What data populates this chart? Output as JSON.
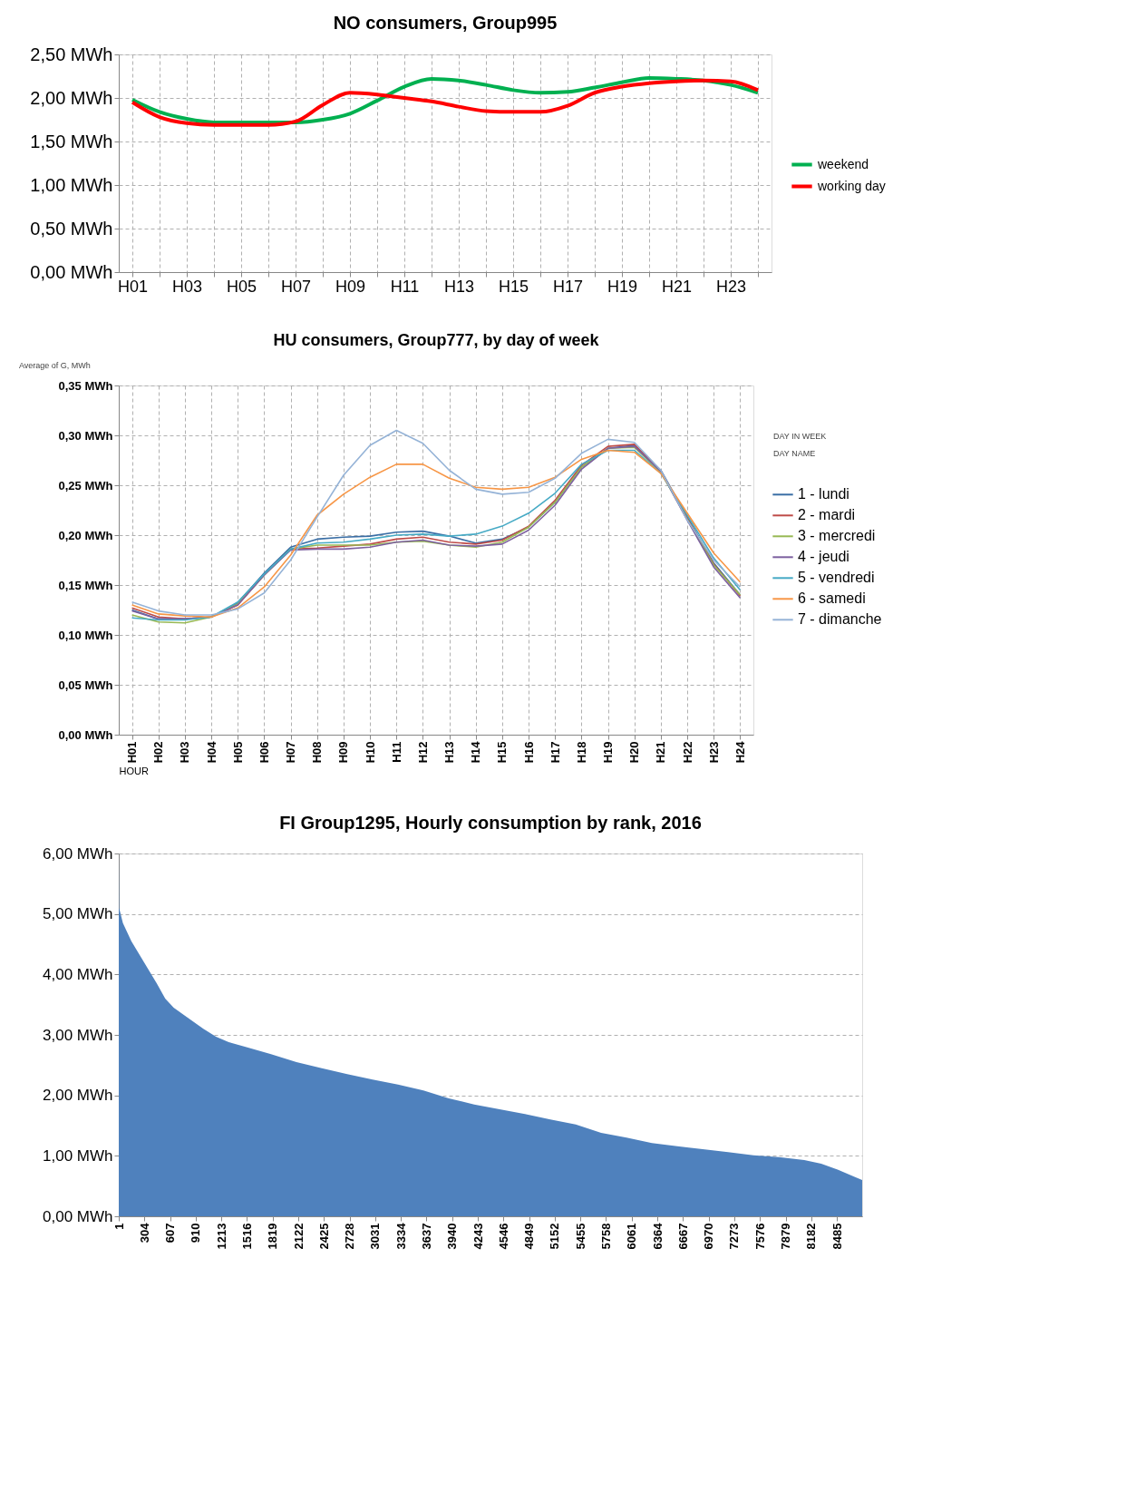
{
  "chart_data": [
    {
      "type": "line",
      "title": "NO consumers, Group995",
      "categories": [
        "H01",
        null,
        "H03",
        null,
        "H05",
        null,
        "H07",
        null,
        "H09",
        null,
        "H11",
        null,
        "H13",
        null,
        "H15",
        null,
        "H17",
        null,
        "H19",
        null,
        "H21",
        null,
        "H23",
        null
      ],
      "series": [
        {
          "name": "weekend",
          "color": "#00b050",
          "values": [
            1.98,
            1.84,
            1.76,
            1.72,
            1.72,
            1.72,
            1.72,
            1.75,
            1.82,
            1.97,
            2.13,
            2.22,
            2.2,
            2.15,
            2.09,
            2.06,
            2.07,
            2.12,
            2.18,
            2.23,
            2.22,
            2.2,
            2.15,
            2.06
          ]
        },
        {
          "name": "working day",
          "color": "#ff0000",
          "values": [
            1.95,
            1.78,
            1.71,
            1.69,
            1.69,
            1.69,
            1.73,
            1.92,
            2.06,
            2.04,
            2.0,
            1.96,
            1.9,
            1.85,
            1.84,
            1.84,
            1.91,
            2.06,
            2.13,
            2.17,
            2.19,
            2.2,
            2.19,
            2.09
          ]
        }
      ],
      "ylim": [
        0,
        2.5
      ],
      "yticks": [
        {
          "value": 0,
          "label": "0,00 MWh"
        },
        {
          "value": 0.5,
          "label": "0,50 MWh"
        },
        {
          "value": 1,
          "label": "1,00 MWh"
        },
        {
          "value": 1.5,
          "label": "1,50 MWh"
        },
        {
          "value": 2,
          "label": "2,00 MWh"
        },
        {
          "value": 2.5,
          "label": "2,50 MWh"
        }
      ],
      "grid": true,
      "legend": "right"
    },
    {
      "type": "line",
      "title": "HU consumers, Group777, by day of week",
      "xlabel": "HOUR",
      "annotations": [
        "Average of G, MWh",
        "DAY IN WEEK",
        "DAY NAME"
      ],
      "categories": [
        "H01",
        "H02",
        "H03",
        "H04",
        "H05",
        "H06",
        "H07",
        "H08",
        "H09",
        "H10",
        "H11",
        "H12",
        "H13",
        "H14",
        "H15",
        "H16",
        "H17",
        "H18",
        "H19",
        "H20",
        "H21",
        "H22",
        "H23",
        "H24"
      ],
      "series": [
        {
          "name": "1 - lundi",
          "color": "#3a6ea5",
          "values": [
            0.125,
            0.116,
            0.116,
            0.118,
            0.132,
            0.162,
            0.188,
            0.196,
            0.198,
            0.199,
            0.203,
            0.204,
            0.199,
            0.192,
            0.196,
            0.208,
            0.233,
            0.268,
            0.287,
            0.29,
            0.265,
            0.218,
            0.172,
            0.14
          ]
        },
        {
          "name": "2 - mardi",
          "color": "#be4b48",
          "values": [
            0.127,
            0.118,
            0.116,
            0.118,
            0.13,
            0.16,
            0.186,
            0.187,
            0.189,
            0.191,
            0.196,
            0.198,
            0.193,
            0.191,
            0.195,
            0.209,
            0.235,
            0.27,
            0.289,
            0.291,
            0.264,
            0.217,
            0.171,
            0.139
          ]
        },
        {
          "name": "3 - mercredi",
          "color": "#98b954",
          "values": [
            0.12,
            0.113,
            0.112,
            0.118,
            0.131,
            0.16,
            0.186,
            0.19,
            0.19,
            0.19,
            0.193,
            0.194,
            0.19,
            0.188,
            0.193,
            0.208,
            0.233,
            0.268,
            0.287,
            0.288,
            0.263,
            0.216,
            0.17,
            0.14
          ]
        },
        {
          "name": "4 - jeudi",
          "color": "#7d60a0",
          "values": [
            0.124,
            0.116,
            0.116,
            0.118,
            0.13,
            0.16,
            0.185,
            0.186,
            0.186,
            0.188,
            0.193,
            0.195,
            0.19,
            0.189,
            0.191,
            0.205,
            0.23,
            0.266,
            0.287,
            0.289,
            0.264,
            0.215,
            0.168,
            0.137
          ]
        },
        {
          "name": "5 - vendredi",
          "color": "#46aac5",
          "values": [
            0.117,
            0.115,
            0.115,
            0.118,
            0.133,
            0.161,
            0.186,
            0.192,
            0.193,
            0.196,
            0.2,
            0.201,
            0.199,
            0.201,
            0.209,
            0.222,
            0.242,
            0.271,
            0.285,
            0.285,
            0.262,
            0.22,
            0.177,
            0.145
          ]
        },
        {
          "name": "6 - samedi",
          "color": "#f79646",
          "values": [
            0.13,
            0.121,
            0.119,
            0.118,
            0.127,
            0.148,
            0.18,
            0.22,
            0.241,
            0.258,
            0.271,
            0.271,
            0.257,
            0.248,
            0.246,
            0.248,
            0.258,
            0.276,
            0.285,
            0.283,
            0.262,
            0.222,
            0.182,
            0.153
          ]
        },
        {
          "name": "7 - dimanche",
          "color": "#95b3d7",
          "values": [
            0.133,
            0.124,
            0.12,
            0.12,
            0.126,
            0.142,
            0.175,
            0.218,
            0.26,
            0.29,
            0.305,
            0.292,
            0.265,
            0.246,
            0.241,
            0.243,
            0.257,
            0.282,
            0.296,
            0.293,
            0.265,
            0.215,
            0.175,
            0.148
          ]
        }
      ],
      "ylim": [
        0,
        0.35
      ],
      "yticks": [
        {
          "value": 0,
          "label": "0,00 MWh"
        },
        {
          "value": 0.05,
          "label": "0,05 MWh"
        },
        {
          "value": 0.1,
          "label": "0,10 MWh"
        },
        {
          "value": 0.15,
          "label": "0,15 MWh"
        },
        {
          "value": 0.2,
          "label": "0,20 MWh"
        },
        {
          "value": 0.25,
          "label": "0,25 MWh"
        },
        {
          "value": 0.3,
          "label": "0,30 MWh"
        },
        {
          "value": 0.35,
          "label": "0,35 MWh"
        }
      ],
      "grid": true,
      "legend": "right"
    },
    {
      "type": "area",
      "title": "FI Group1295, Hourly consumption by rank, 2016",
      "series": [
        {
          "color": "#4f81bd",
          "x": [
            1,
            5,
            50,
            150,
            300,
            450,
            550,
            650,
            800,
            1000,
            1150,
            1300,
            1500,
            1800,
            2100,
            2400,
            2700,
            3000,
            3300,
            3600,
            3900,
            4200,
            4500,
            4800,
            5100,
            5400,
            5700,
            6000,
            6300,
            6600,
            6900,
            7200,
            7500,
            7800,
            8100,
            8300,
            8500,
            8700,
            8784
          ],
          "values": [
            5.95,
            5.1,
            4.85,
            4.55,
            4.2,
            3.85,
            3.6,
            3.45,
            3.3,
            3.1,
            2.97,
            2.88,
            2.8,
            2.68,
            2.55,
            2.45,
            2.35,
            2.26,
            2.18,
            2.08,
            1.95,
            1.85,
            1.77,
            1.69,
            1.6,
            1.52,
            1.38,
            1.3,
            1.21,
            1.16,
            1.11,
            1.06,
            1.01,
            0.98,
            0.93,
            0.87,
            0.77,
            0.65,
            0.6
          ]
        }
      ],
      "xlim": [
        1,
        8784
      ],
      "xticks": [
        1,
        304,
        607,
        910,
        1213,
        1516,
        1819,
        2122,
        2425,
        2728,
        3031,
        3334,
        3637,
        3940,
        4243,
        4546,
        4849,
        5152,
        5455,
        5758,
        6061,
        6364,
        6667,
        6970,
        7273,
        7576,
        7879,
        8182,
        8485
      ],
      "ylim": [
        0,
        6
      ],
      "yticks": [
        {
          "value": 0,
          "label": "0,00 MWh"
        },
        {
          "value": 1,
          "label": "1,00 MWh"
        },
        {
          "value": 2,
          "label": "2,00 MWh"
        },
        {
          "value": 3,
          "label": "3,00 MWh"
        },
        {
          "value": 4,
          "label": "4,00 MWh"
        },
        {
          "value": 5,
          "label": "5,00 MWh"
        },
        {
          "value": 6,
          "label": "6,00 MWh"
        }
      ],
      "grid": "y"
    }
  ]
}
